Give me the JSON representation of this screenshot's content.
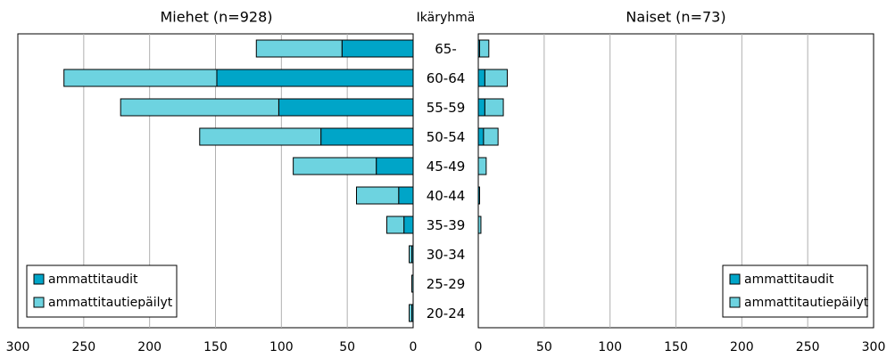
{
  "chart_data": {
    "type": "bar",
    "age_axis_label": "Ikäryhmä",
    "categories": [
      "65-",
      "60-64",
      "55-59",
      "50-54",
      "45-49",
      "40-44",
      "35-39",
      "30-34",
      "25-29",
      "20-24"
    ],
    "xlim": [
      0,
      300
    ],
    "xticks": [
      0,
      50,
      100,
      150,
      200,
      250,
      300
    ],
    "grid": true,
    "stacked": true,
    "legend_position": "bottom-right",
    "colors": {
      "ammattitaudit": "#00a5c8",
      "ammattitautiepailyt": "#6dd3e0"
    },
    "panels": [
      {
        "title": "Miehet (n=928)",
        "orientation": "reversed",
        "legend_position": "bottom-left",
        "series": [
          {
            "name": "ammattitaudit",
            "values": [
              54,
              149,
              102,
              70,
              28,
              11,
              7,
              1,
              0,
              1
            ]
          },
          {
            "name": "ammattitautiepäilyt",
            "values": [
              65,
              116,
              120,
              92,
              63,
              32,
              13,
              2,
              1,
              2
            ]
          }
        ]
      },
      {
        "title": "Naiset (n=73)",
        "orientation": "normal",
        "legend_position": "bottom-right",
        "series": [
          {
            "name": "ammattitaudit",
            "values": [
              1,
              5,
              5,
              4,
              0,
              1,
              0,
              0,
              0,
              0
            ]
          },
          {
            "name": "ammattitautiepäilyt",
            "values": [
              7,
              17,
              14,
              11,
              6,
              0,
              2,
              0,
              0,
              0
            ]
          }
        ]
      }
    ]
  }
}
